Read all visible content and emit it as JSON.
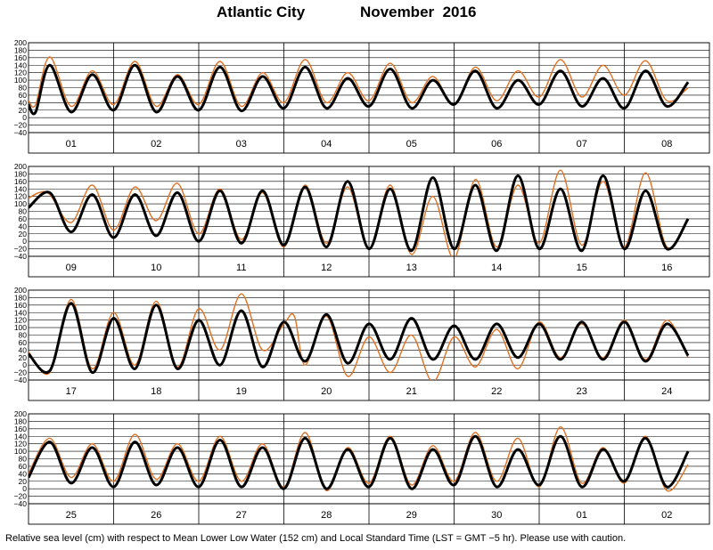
{
  "header": {
    "station": "Atlantic City",
    "month": "November",
    "year": "2016"
  },
  "footer": {
    "note": "Relative sea level (cm) with respect to Mean Lower Low Water (152 cm) and Local Standard Time (LST = GMT −5 hr). Please use with caution."
  },
  "chart_data": {
    "type": "line",
    "ylim": [
      -40,
      200
    ],
    "yticks": [
      "200",
      "180",
      "160",
      "140",
      "120",
      "100",
      "80",
      "60",
      "40",
      "20",
      "0",
      "−20",
      "−40"
    ],
    "grid": true,
    "series_colors": {
      "predicted": "#000000",
      "observed": "#e07020"
    },
    "panels": [
      {
        "day_labels": [
          "01",
          "02",
          "03",
          "04",
          "05",
          "06",
          "07",
          "08"
        ],
        "predicted": [
          [
            0,
            35
          ],
          [
            4,
            15
          ],
          [
            12,
            140
          ],
          [
            24,
            15
          ],
          [
            36,
            115
          ],
          [
            48,
            20
          ],
          [
            60,
            140
          ],
          [
            72,
            15
          ],
          [
            84,
            110
          ],
          [
            96,
            20
          ],
          [
            108,
            135
          ],
          [
            120,
            18
          ],
          [
            132,
            110
          ],
          [
            144,
            25
          ],
          [
            156,
            135
          ],
          [
            168,
            25
          ],
          [
            180,
            105
          ],
          [
            192,
            30
          ],
          [
            204,
            130
          ],
          [
            216,
            25
          ],
          [
            228,
            100
          ],
          [
            240,
            35
          ],
          [
            252,
            125
          ],
          [
            264,
            25
          ],
          [
            276,
            100
          ],
          [
            288,
            35
          ],
          [
            300,
            125
          ],
          [
            312,
            30
          ],
          [
            324,
            105
          ],
          [
            336,
            25
          ],
          [
            348,
            125
          ],
          [
            360,
            30
          ],
          [
            372,
            95
          ]
        ],
        "observed": [
          [
            0,
            45
          ],
          [
            4,
            35
          ],
          [
            12,
            162
          ],
          [
            24,
            30
          ],
          [
            36,
            125
          ],
          [
            48,
            35
          ],
          [
            60,
            150
          ],
          [
            72,
            30
          ],
          [
            84,
            115
          ],
          [
            96,
            35
          ],
          [
            108,
            150
          ],
          [
            120,
            30
          ],
          [
            132,
            120
          ],
          [
            144,
            40
          ],
          [
            156,
            155
          ],
          [
            168,
            40
          ],
          [
            180,
            120
          ],
          [
            192,
            45
          ],
          [
            204,
            145
          ],
          [
            216,
            40
          ],
          [
            228,
            110
          ],
          [
            240,
            35
          ],
          [
            252,
            135
          ],
          [
            264,
            45
          ],
          [
            276,
            125
          ],
          [
            288,
            55
          ],
          [
            300,
            155
          ],
          [
            312,
            55
          ],
          [
            324,
            140
          ],
          [
            336,
            60
          ],
          [
            348,
            152
          ],
          [
            360,
            45
          ],
          [
            372,
            80
          ]
        ]
      },
      {
        "day_labels": [
          "09",
          "10",
          "11",
          "12",
          "13",
          "14",
          "15",
          "16"
        ],
        "predicted": [
          [
            0,
            90
          ],
          [
            12,
            130
          ],
          [
            24,
            25
          ],
          [
            36,
            125
          ],
          [
            48,
            10
          ],
          [
            60,
            125
          ],
          [
            72,
            15
          ],
          [
            84,
            130
          ],
          [
            96,
            0
          ],
          [
            108,
            135
          ],
          [
            120,
            -5
          ],
          [
            132,
            135
          ],
          [
            144,
            -10
          ],
          [
            156,
            145
          ],
          [
            168,
            -15
          ],
          [
            180,
            160
          ],
          [
            192,
            -20
          ],
          [
            204,
            140
          ],
          [
            216,
            -25
          ],
          [
            228,
            170
          ],
          [
            240,
            -20
          ],
          [
            252,
            150
          ],
          [
            264,
            -25
          ],
          [
            276,
            175
          ],
          [
            288,
            -20
          ],
          [
            300,
            140
          ],
          [
            312,
            -25
          ],
          [
            324,
            175
          ],
          [
            336,
            -20
          ],
          [
            348,
            135
          ],
          [
            360,
            -20
          ],
          [
            372,
            60
          ]
        ],
        "observed": [
          [
            0,
            115
          ],
          [
            6,
            130
          ],
          [
            12,
            125
          ],
          [
            24,
            50
          ],
          [
            36,
            150
          ],
          [
            48,
            30
          ],
          [
            60,
            145
          ],
          [
            72,
            55
          ],
          [
            84,
            155
          ],
          [
            96,
            20
          ],
          [
            108,
            140
          ],
          [
            120,
            5
          ],
          [
            132,
            130
          ],
          [
            144,
            -15
          ],
          [
            156,
            150
          ],
          [
            168,
            -5
          ],
          [
            180,
            145
          ],
          [
            192,
            -20
          ],
          [
            204,
            150
          ],
          [
            216,
            -35
          ],
          [
            228,
            120
          ],
          [
            240,
            -45
          ],
          [
            252,
            165
          ],
          [
            264,
            -15
          ],
          [
            276,
            150
          ],
          [
            288,
            -5
          ],
          [
            300,
            190
          ],
          [
            312,
            -10
          ],
          [
            324,
            160
          ],
          [
            336,
            -15
          ],
          [
            348,
            183
          ],
          [
            360,
            -15
          ],
          [
            372,
            60
          ]
        ]
      },
      {
        "day_labels": [
          "17",
          "18",
          "19",
          "20",
          "21",
          "22",
          "23",
          "24"
        ],
        "predicted": [
          [
            0,
            30
          ],
          [
            12,
            -15
          ],
          [
            24,
            165
          ],
          [
            36,
            -20
          ],
          [
            48,
            125
          ],
          [
            60,
            -10
          ],
          [
            72,
            160
          ],
          [
            84,
            -10
          ],
          [
            96,
            120
          ],
          [
            108,
            0
          ],
          [
            120,
            145
          ],
          [
            132,
            -5
          ],
          [
            144,
            115
          ],
          [
            156,
            10
          ],
          [
            168,
            135
          ],
          [
            180,
            5
          ],
          [
            192,
            110
          ],
          [
            204,
            15
          ],
          [
            216,
            125
          ],
          [
            228,
            15
          ],
          [
            240,
            105
          ],
          [
            252,
            15
          ],
          [
            264,
            110
          ],
          [
            276,
            20
          ],
          [
            288,
            110
          ],
          [
            300,
            15
          ],
          [
            312,
            115
          ],
          [
            324,
            15
          ],
          [
            336,
            115
          ],
          [
            348,
            10
          ],
          [
            360,
            110
          ],
          [
            372,
            25
          ]
        ],
        "observed": [
          [
            0,
            35
          ],
          [
            12,
            -20
          ],
          [
            24,
            175
          ],
          [
            36,
            -10
          ],
          [
            48,
            140
          ],
          [
            60,
            0
          ],
          [
            72,
            170
          ],
          [
            84,
            -5
          ],
          [
            96,
            150
          ],
          [
            108,
            40
          ],
          [
            120,
            190
          ],
          [
            132,
            40
          ],
          [
            144,
            110
          ],
          [
            150,
            130
          ],
          [
            156,
            0
          ],
          [
            168,
            130
          ],
          [
            180,
            -30
          ],
          [
            192,
            75
          ],
          [
            204,
            -20
          ],
          [
            216,
            80
          ],
          [
            228,
            -45
          ],
          [
            240,
            75
          ],
          [
            252,
            -5
          ],
          [
            264,
            95
          ],
          [
            276,
            -10
          ],
          [
            288,
            115
          ],
          [
            300,
            20
          ],
          [
            312,
            110
          ],
          [
            324,
            20
          ],
          [
            336,
            120
          ],
          [
            348,
            15
          ],
          [
            360,
            120
          ],
          [
            372,
            20
          ]
        ]
      },
      {
        "day_labels": [
          "25",
          "26",
          "27",
          "28",
          "29",
          "30",
          "01",
          "02"
        ],
        "predicted": [
          [
            0,
            30
          ],
          [
            12,
            125
          ],
          [
            24,
            15
          ],
          [
            36,
            110
          ],
          [
            48,
            5
          ],
          [
            60,
            125
          ],
          [
            72,
            10
          ],
          [
            84,
            110
          ],
          [
            96,
            5
          ],
          [
            108,
            130
          ],
          [
            120,
            5
          ],
          [
            132,
            110
          ],
          [
            144,
            0
          ],
          [
            156,
            135
          ],
          [
            168,
            0
          ],
          [
            180,
            105
          ],
          [
            192,
            5
          ],
          [
            204,
            135
          ],
          [
            216,
            0
          ],
          [
            228,
            105
          ],
          [
            240,
            10
          ],
          [
            252,
            140
          ],
          [
            264,
            5
          ],
          [
            276,
            105
          ],
          [
            288,
            10
          ],
          [
            300,
            140
          ],
          [
            312,
            5
          ],
          [
            324,
            105
          ],
          [
            336,
            20
          ],
          [
            348,
            135
          ],
          [
            360,
            5
          ],
          [
            372,
            100
          ]
        ],
        "observed": [
          [
            0,
            40
          ],
          [
            12,
            135
          ],
          [
            24,
            30
          ],
          [
            36,
            120
          ],
          [
            48,
            20
          ],
          [
            60,
            145
          ],
          [
            72,
            25
          ],
          [
            84,
            120
          ],
          [
            96,
            20
          ],
          [
            108,
            140
          ],
          [
            120,
            20
          ],
          [
            132,
            120
          ],
          [
            144,
            5
          ],
          [
            156,
            150
          ],
          [
            168,
            -5
          ],
          [
            180,
            110
          ],
          [
            192,
            15
          ],
          [
            204,
            140
          ],
          [
            216,
            10
          ],
          [
            228,
            115
          ],
          [
            240,
            20
          ],
          [
            252,
            150
          ],
          [
            264,
            20
          ],
          [
            276,
            135
          ],
          [
            288,
            5
          ],
          [
            300,
            165
          ],
          [
            312,
            15
          ],
          [
            324,
            110
          ],
          [
            336,
            15
          ],
          [
            348,
            140
          ],
          [
            360,
            -5
          ],
          [
            372,
            65
          ]
        ]
      }
    ]
  }
}
